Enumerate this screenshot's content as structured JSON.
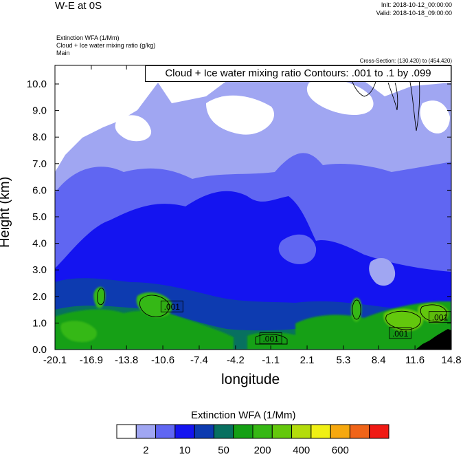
{
  "header": {
    "title": "W-E at 0S",
    "init": "Init: 2018-10-12_00:00:00",
    "valid": "Valid: 2018-10-18_09:00:00",
    "field_lines": [
      "Extinction WFA   (1/Mm)",
      "Cloud + Ice water mixing ratio   (g/kg)",
      "Main"
    ],
    "cross_section": "Cross-Section: (130,420) to (454,420)"
  },
  "chart_data": {
    "type": "heatmap",
    "title": "",
    "xlabel": "longitude",
    "ylabel": "Height (km)",
    "x_ticks": [
      "-20.1",
      "-16.9",
      "-13.8",
      "-10.6",
      "-7.4",
      "-4.2",
      "-1.1",
      "2.1",
      "5.3",
      "8.4",
      "11.6",
      "14.8"
    ],
    "y_ticks": [
      "0.0",
      "1.0",
      "2.0",
      "3.0",
      "4.0",
      "5.0",
      "6.0",
      "7.0",
      "8.0",
      "9.0",
      "10.0"
    ],
    "xlim": [
      -20.1,
      14.8
    ],
    "ylim": [
      0,
      10.7
    ],
    "contour_note": "Cloud + Ice water mixing ratio Contours: .001 to .1 by .099",
    "contour_labels": [
      {
        "text": ".001",
        "x": -9.8,
        "y": 1.6
      },
      {
        "text": ".001",
        "x": -1.1,
        "y": 0.4
      },
      {
        "text": ".001",
        "x": 10.3,
        "y": 0.6
      },
      {
        "text": ".001",
        "x": 13.8,
        "y": 1.2
      }
    ],
    "colorbar": {
      "title": "Extinction WFA  (1/Mm)",
      "colors": [
        "#ffffff",
        "#a0a6f2",
        "#6066f2",
        "#1414f0",
        "#0d3bb0",
        "#087060",
        "#14a014",
        "#36b814",
        "#64c80c",
        "#b4dc0c",
        "#f0f014",
        "#f6a80e",
        "#f06418",
        "#f01a14"
      ],
      "labels": [
        "2",
        "10",
        "50",
        "200",
        "400",
        "600"
      ],
      "label_positions": [
        1.5,
        3.5,
        5.5,
        7.5,
        9.5,
        11.5
      ]
    }
  }
}
